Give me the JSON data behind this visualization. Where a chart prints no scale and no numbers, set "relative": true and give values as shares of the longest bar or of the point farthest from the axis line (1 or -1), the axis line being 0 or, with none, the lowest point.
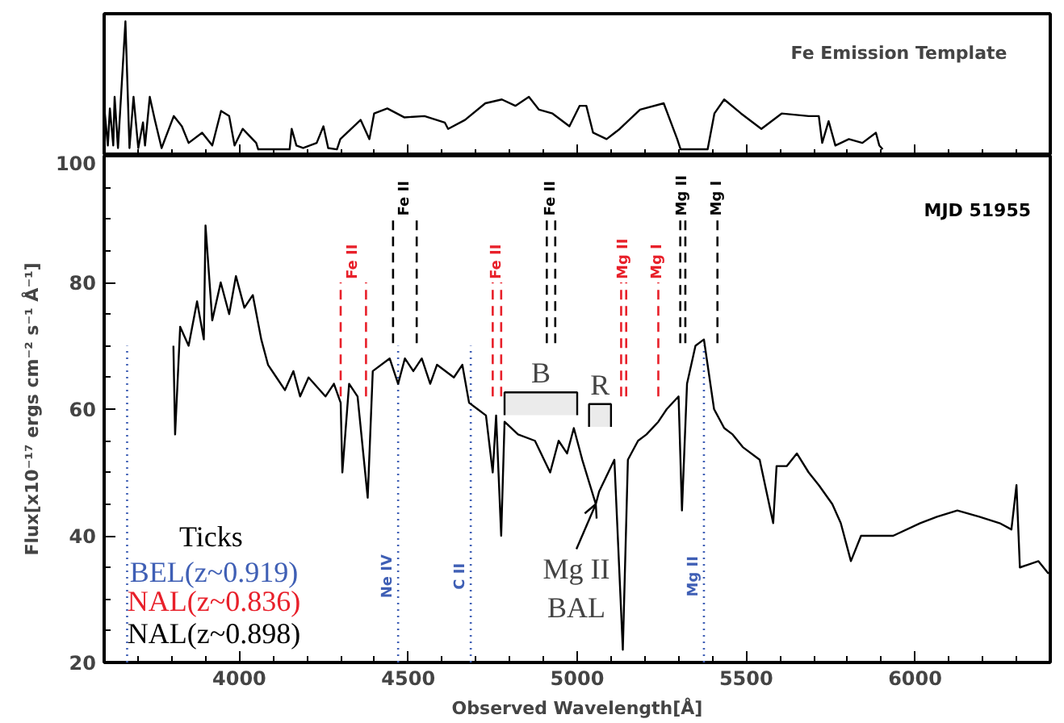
{
  "chart_data": [
    {
      "type": "line",
      "title": "Fe Emission Template",
      "relative": true,
      "color": "#000000",
      "tick_labels": false,
      "xlim": [
        3600,
        6400
      ],
      "xticks": [
        4000,
        4500,
        5000,
        5500,
        6000
      ],
      "x": [
        3601,
        3611,
        3617,
        3627,
        3631,
        3641,
        3663,
        3675,
        3687,
        3701,
        3715,
        3721,
        3735,
        3750,
        3770,
        3806,
        3830,
        3850,
        3890,
        3920,
        3946,
        3970,
        3986,
        4010,
        4050,
        4056,
        4149,
        4155,
        4169,
        4189,
        4229,
        4249,
        4263,
        4289,
        4299,
        4359,
        4385,
        4399,
        4438,
        4488,
        4548,
        4608,
        4618,
        4668,
        4728,
        4777,
        4817,
        4857,
        4887,
        4927,
        4977,
        5007,
        5027,
        5047,
        5087,
        5126,
        5186,
        5256,
        5296,
        5306,
        5386,
        5406,
        5435,
        5485,
        5545,
        5605,
        5685,
        5715,
        5725,
        5744,
        5764,
        5804,
        5844,
        5884,
        5894,
        5904
      ],
      "values": [
        0.31,
        0.03,
        0.32,
        0.03,
        0.41,
        0.01,
        1.0,
        0.01,
        0.41,
        0.01,
        0.21,
        0.03,
        0.41,
        0.23,
        0.01,
        0.26,
        0.18,
        0.05,
        0.13,
        0.03,
        0.3,
        0.26,
        0.03,
        0.16,
        0.05,
        0,
        0,
        0.16,
        0.03,
        0.01,
        0.05,
        0.18,
        0.01,
        0,
        0.08,
        0.23,
        0.08,
        0.28,
        0.32,
        0.25,
        0.26,
        0.21,
        0.16,
        0.23,
        0.36,
        0.39,
        0.34,
        0.41,
        0.31,
        0.28,
        0.18,
        0.34,
        0.34,
        0.13,
        0.08,
        0.16,
        0.31,
        0.36,
        0.08,
        0,
        0,
        0.28,
        0.39,
        0.28,
        0.16,
        0.28,
        0.26,
        0.26,
        0.05,
        0.22,
        0.03,
        0.08,
        0.05,
        0.13,
        0.03,
        0
      ]
    },
    {
      "type": "line",
      "color": "#000000",
      "xlabel": "Observed Wavelength[Å]",
      "ylabel": "Flux[x10⁻¹⁷ ergs cm⁻² s⁻¹ Å⁻¹]",
      "xlim": [
        3600,
        6400
      ],
      "ylim": [
        20,
        100
      ],
      "xticks": [
        4000,
        4500,
        5000,
        5500,
        6000
      ],
      "yticks": [
        20,
        40,
        60,
        80,
        100
      ],
      "x": [
        3805,
        3810,
        3825,
        3850,
        3875,
        3895,
        3900,
        3920,
        3945,
        3970,
        3990,
        4015,
        4040,
        4065,
        4085,
        4110,
        4135,
        4160,
        4180,
        4205,
        4255,
        4280,
        4300,
        4305,
        4325,
        4350,
        4380,
        4395,
        4445,
        4470,
        4490,
        4515,
        4540,
        4565,
        4585,
        4635,
        4660,
        4680,
        4705,
        4730,
        4750,
        4760,
        4775,
        4785,
        4825,
        4875,
        4920,
        4945,
        4970,
        4990,
        5015,
        5055,
        5065,
        5110,
        5135,
        5150,
        5180,
        5205,
        5240,
        5265,
        5300,
        5310,
        5325,
        5350,
        5375,
        5405,
        5435,
        5460,
        5490,
        5540,
        5580,
        5590,
        5620,
        5650,
        5685,
        5715,
        5755,
        5780,
        5810,
        5840,
        5895,
        5935,
        6015,
        6065,
        6125,
        6190,
        6250,
        6285,
        6300,
        6310,
        6365,
        6395
      ],
      "values": [
        70,
        56,
        73,
        70,
        77,
        71,
        89,
        74,
        80,
        75,
        81,
        76,
        78,
        71,
        67,
        65,
        63,
        66,
        62,
        65,
        62,
        64,
        61,
        50,
        64,
        62,
        46,
        66,
        68,
        64,
        68,
        66,
        68,
        64,
        67,
        65,
        67,
        61,
        60,
        59,
        50,
        59,
        40,
        58,
        56,
        55,
        50,
        55,
        53,
        57,
        52,
        45,
        47,
        52,
        22,
        52,
        55,
        56,
        58,
        60,
        62,
        44,
        64,
        70,
        71,
        60,
        57,
        56,
        54,
        52,
        42,
        51,
        51,
        53,
        50,
        48,
        45,
        42,
        36,
        40,
        40,
        40,
        42,
        43,
        44,
        43,
        42,
        41,
        48,
        35,
        36,
        34
      ],
      "ref_lines": [
        {
          "axis": "x",
          "value": 3668,
          "label": null,
          "color": "#3f5fb5",
          "line_style": "dotted"
        },
        {
          "axis": "x",
          "value": 4470,
          "label": "Ne IV",
          "color": "#3f5fb5",
          "line_style": "dotted"
        },
        {
          "axis": "x",
          "value": 4685,
          "label": "C II",
          "color": "#3f5fb5",
          "line_style": "dotted"
        },
        {
          "axis": "x",
          "value": 5375,
          "label": "Mg II",
          "color": "#3f5fb5",
          "line_style": "dotted"
        },
        {
          "axis": "x",
          "value": 4300,
          "label": "Fe II",
          "color": "#e8202a",
          "line_style": "dashed"
        },
        {
          "axis": "x",
          "value": 4375,
          "label": null,
          "color": "#e8202a",
          "line_style": "dashed"
        },
        {
          "axis": "x",
          "value": 4750,
          "label": "Fe II",
          "color": "#e8202a",
          "line_style": "dashed"
        },
        {
          "axis": "x",
          "value": 4775,
          "label": null,
          "color": "#e8202a",
          "line_style": "dashed"
        },
        {
          "axis": "x",
          "value": 5130,
          "label": "Mg II",
          "color": "#e8202a",
          "line_style": "dashed"
        },
        {
          "axis": "x",
          "value": 5145,
          "label": null,
          "color": "#e8202a",
          "line_style": "dashed"
        },
        {
          "axis": "x",
          "value": 5240,
          "label": "Mg I",
          "color": "#e8202a",
          "line_style": "dashed"
        },
        {
          "axis": "x",
          "value": 4455,
          "label": "Fe II",
          "color": "#000000",
          "line_style": "dashed"
        },
        {
          "axis": "x",
          "value": 4525,
          "label": null,
          "color": "#000000",
          "line_style": "dashed"
        },
        {
          "axis": "x",
          "value": 4910,
          "label": "Fe II",
          "color": "#000000",
          "line_style": "dashed"
        },
        {
          "axis": "x",
          "value": 4935,
          "label": null,
          "color": "#000000",
          "line_style": "dashed"
        },
        {
          "axis": "x",
          "value": 5305,
          "label": "Mg II",
          "color": "#000000",
          "line_style": "dashed"
        },
        {
          "axis": "x",
          "value": 5320,
          "label": null,
          "color": "#000000",
          "line_style": "dashed"
        },
        {
          "axis": "x",
          "value": 5415,
          "label": "Mg I",
          "color": "#000000",
          "line_style": "dashed"
        }
      ],
      "bands": [
        {
          "axis": "x",
          "from": 4785,
          "to": 5000,
          "label": "B"
        },
        {
          "axis": "x",
          "from": 5035,
          "to": 5100,
          "label": "R"
        }
      ],
      "annotations": [
        "Ticks",
        "BEL(z~0.919)",
        "NAL(z~0.836)",
        "NAL(z~0.898)",
        "MJD 51955",
        {
          "text": "Mg II BAL",
          "x": 5055,
          "y": 45
        }
      ]
    }
  ]
}
